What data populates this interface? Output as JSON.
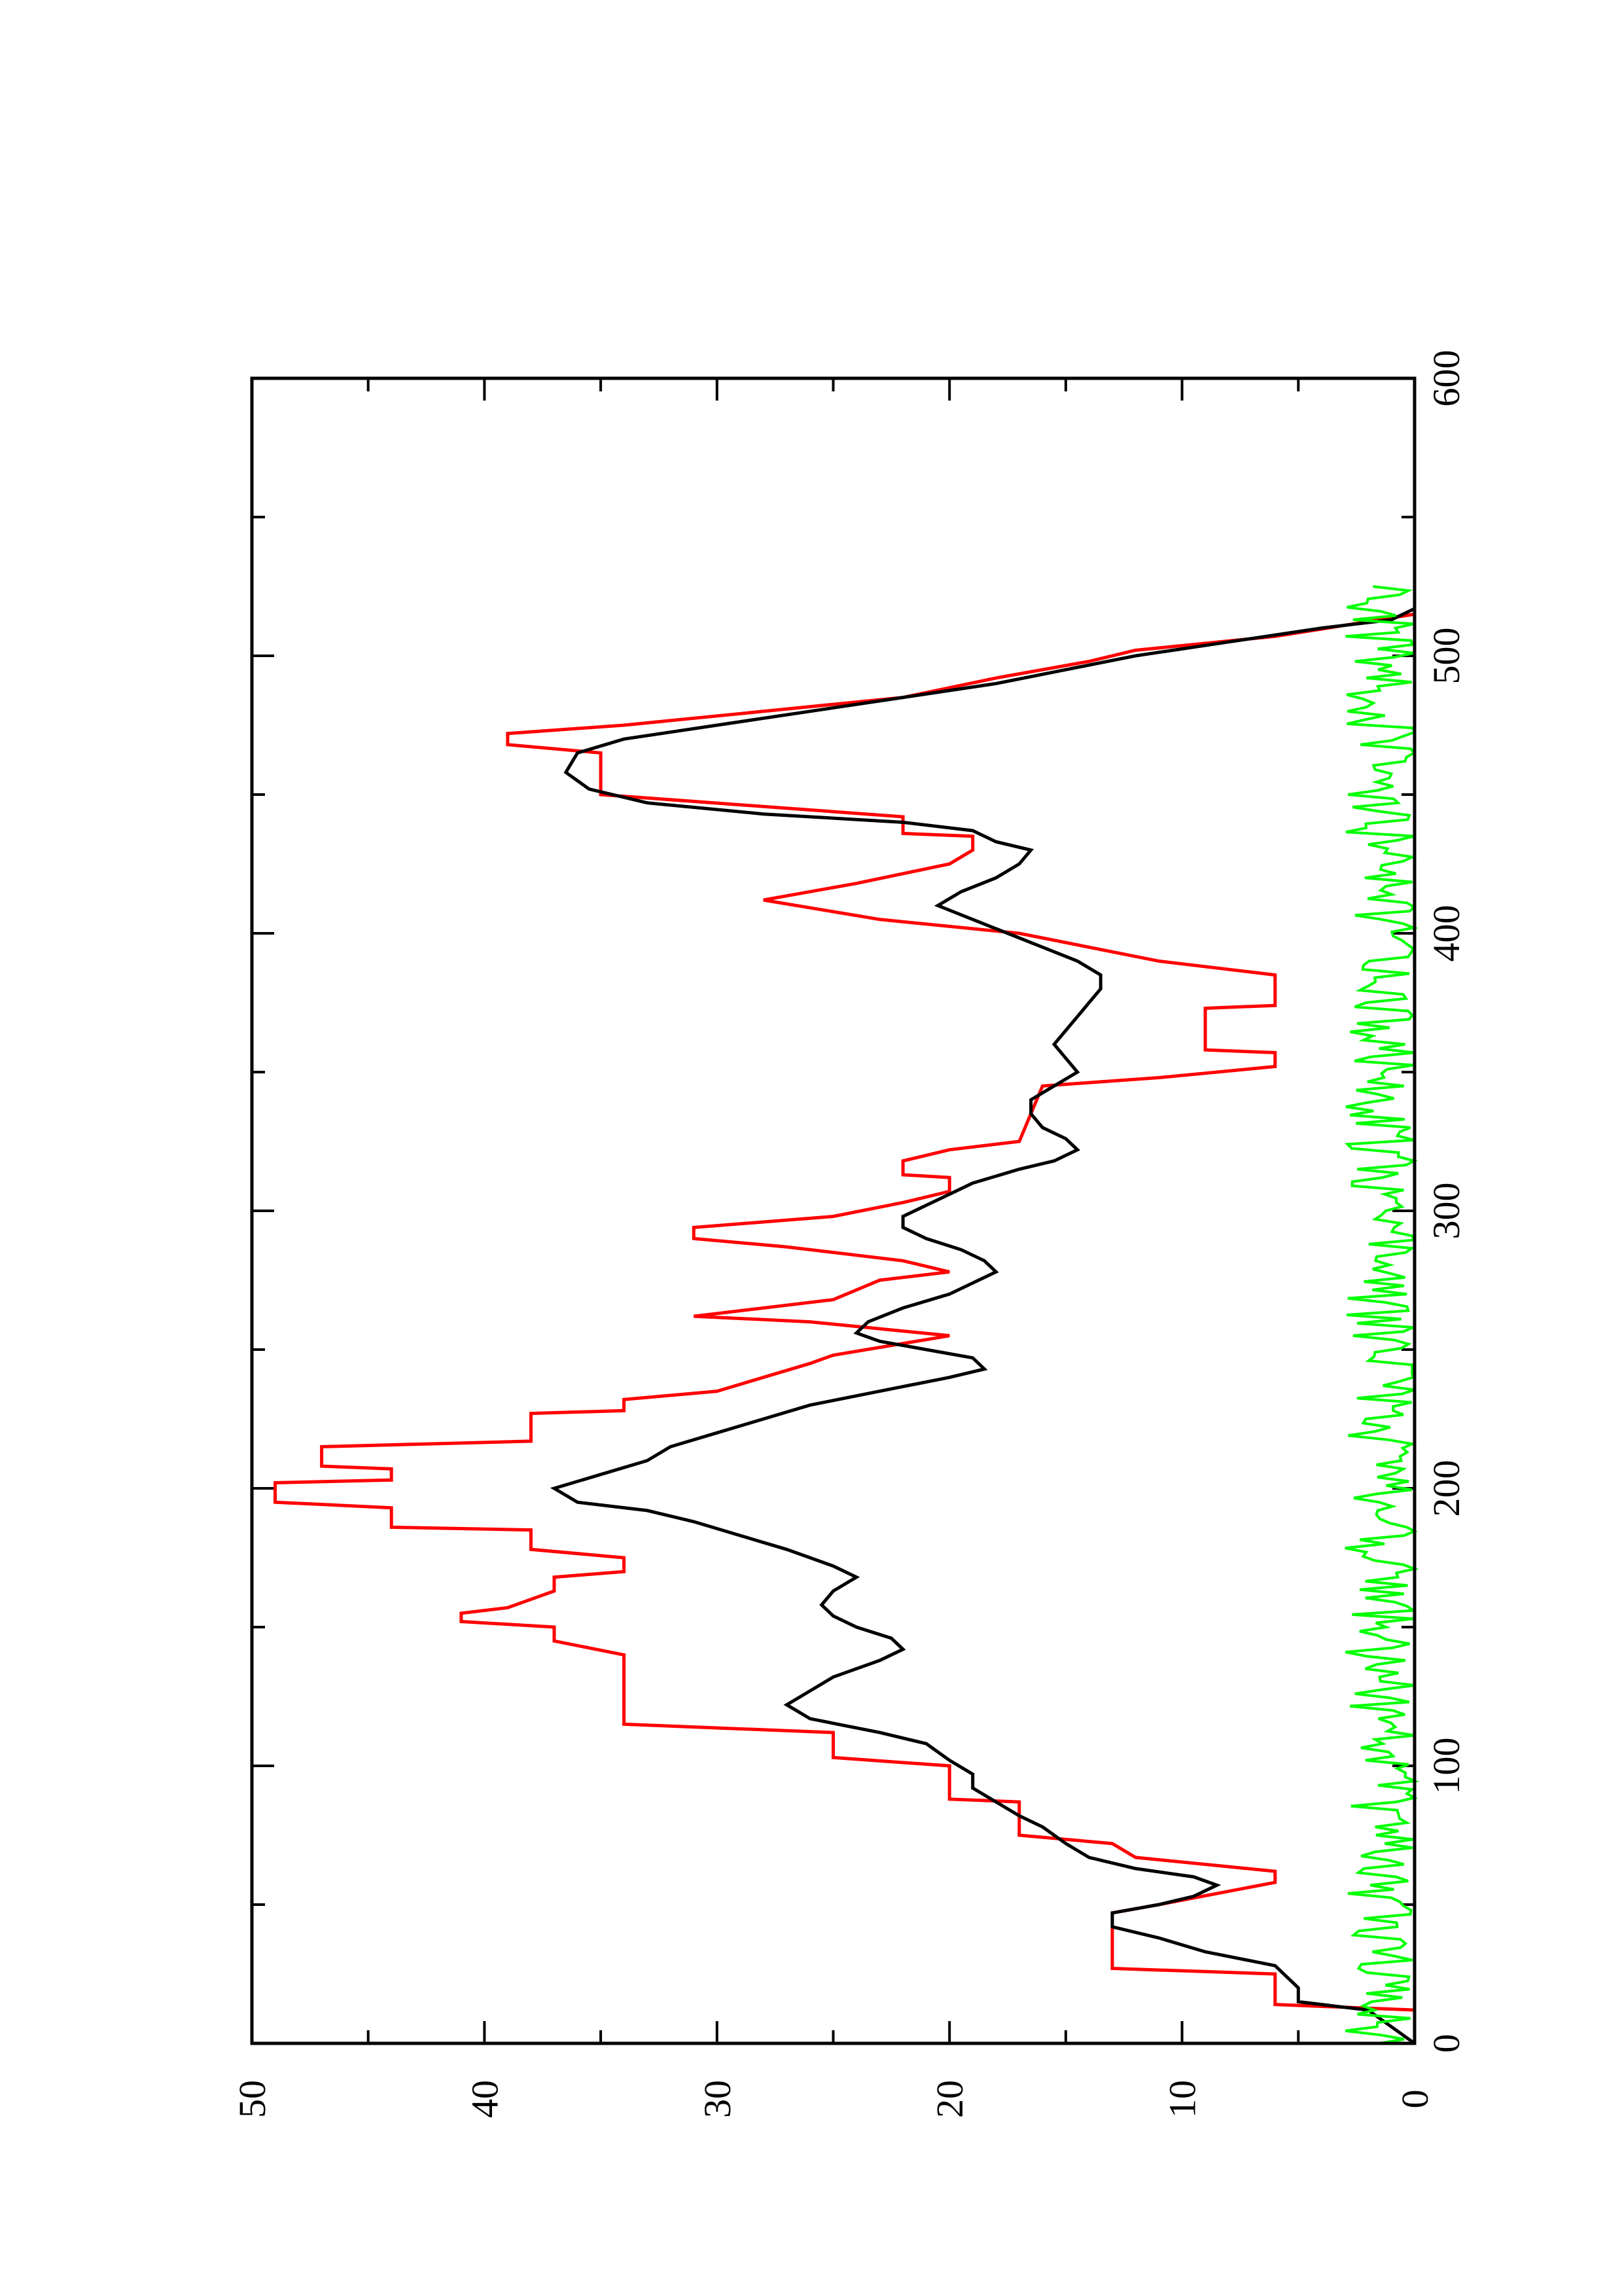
{
  "chart_data": {
    "type": "line",
    "orientation": "rotated-90-ccw",
    "title": "",
    "xlabel": "",
    "ylabel": "",
    "xlim": [
      0,
      600
    ],
    "ylim": [
      0,
      50
    ],
    "x_ticks": [
      0,
      100,
      200,
      300,
      400,
      500,
      600
    ],
    "x_tick_labels": [
      "0",
      "100",
      "200",
      "300",
      "400",
      "500",
      "600"
    ],
    "y_ticks": [
      0,
      10,
      20,
      30,
      40,
      50
    ],
    "y_tick_labels": [
      "0",
      "10",
      "20",
      "30",
      "40",
      "50"
    ],
    "grid": false,
    "legend": "none",
    "series": [
      {
        "color": "#ff0000",
        "style": "step",
        "points": [
          [
            0,
            0
          ],
          [
            12,
            0
          ],
          [
            14,
            6
          ],
          [
            25,
            6
          ],
          [
            27,
            13
          ],
          [
            47,
            13
          ],
          [
            50,
            11
          ],
          [
            58,
            6
          ],
          [
            62,
            6
          ],
          [
            67,
            12
          ],
          [
            72,
            13
          ],
          [
            75,
            17
          ],
          [
            87,
            17
          ],
          [
            88,
            20
          ],
          [
            100,
            20
          ],
          [
            103,
            25
          ],
          [
            112,
            25
          ],
          [
            115,
            34
          ],
          [
            140,
            34
          ],
          [
            145,
            37
          ],
          [
            150,
            37
          ],
          [
            152,
            41
          ],
          [
            155,
            41
          ],
          [
            157,
            39
          ],
          [
            163,
            37
          ],
          [
            168,
            37
          ],
          [
            170,
            34
          ],
          [
            175,
            34
          ],
          [
            178,
            38
          ],
          [
            185,
            38
          ],
          [
            186,
            44
          ],
          [
            193,
            44
          ],
          [
            195,
            49
          ],
          [
            202,
            49
          ],
          [
            203,
            44
          ],
          [
            207,
            44
          ],
          [
            208,
            47
          ],
          [
            215,
            47
          ],
          [
            217,
            38
          ],
          [
            227,
            38
          ],
          [
            228,
            34
          ],
          [
            232,
            34
          ],
          [
            235,
            30
          ],
          [
            245,
            26
          ],
          [
            248,
            25
          ],
          [
            255,
            20
          ],
          [
            260,
            26
          ],
          [
            262,
            31
          ],
          [
            268,
            25
          ],
          [
            275,
            23
          ],
          [
            278,
            20
          ],
          [
            282,
            22
          ],
          [
            287,
            27
          ],
          [
            290,
            31
          ],
          [
            294,
            31
          ],
          [
            298,
            25
          ],
          [
            303,
            22
          ],
          [
            307,
            20
          ],
          [
            312,
            20
          ],
          [
            313,
            22
          ],
          [
            318,
            22
          ],
          [
            322,
            20
          ],
          [
            325,
            17
          ],
          [
            345,
            16
          ],
          [
            348,
            11
          ],
          [
            352,
            6
          ],
          [
            357,
            6
          ],
          [
            358,
            9
          ],
          [
            373,
            9
          ],
          [
            374,
            6
          ],
          [
            385,
            6
          ],
          [
            390,
            11
          ],
          [
            400,
            17
          ],
          [
            405,
            23
          ],
          [
            412,
            28
          ],
          [
            418,
            24
          ],
          [
            425,
            20
          ],
          [
            430,
            19
          ],
          [
            435,
            19
          ],
          [
            436,
            22
          ],
          [
            442,
            22
          ],
          [
            450,
            35
          ],
          [
            465,
            35
          ],
          [
            468,
            39
          ],
          [
            472,
            39
          ],
          [
            475,
            34
          ],
          [
            480,
            28
          ],
          [
            485,
            22
          ],
          [
            492,
            18
          ],
          [
            498,
            14
          ],
          [
            502,
            12
          ],
          [
            507,
            6
          ],
          [
            515,
            0
          ],
          [
            525,
            0
          ]
        ]
      },
      {
        "color": "#000000",
        "style": "line",
        "points": [
          [
            0,
            0
          ],
          [
            12,
            2
          ],
          [
            15,
            5
          ],
          [
            20,
            5
          ],
          [
            28,
            6
          ],
          [
            33,
            9
          ],
          [
            38,
            11
          ],
          [
            42,
            13
          ],
          [
            47,
            13
          ],
          [
            50,
            11
          ],
          [
            53,
            9.5
          ],
          [
            57,
            8.5
          ],
          [
            60,
            9.5
          ],
          [
            63,
            12
          ],
          [
            67,
            14
          ],
          [
            72,
            15
          ],
          [
            78,
            16
          ],
          [
            82,
            17
          ],
          [
            87,
            18
          ],
          [
            92,
            19
          ],
          [
            97,
            19
          ],
          [
            102,
            20
          ],
          [
            108,
            21
          ],
          [
            112,
            23
          ],
          [
            117,
            26
          ],
          [
            122,
            27
          ],
          [
            127,
            26
          ],
          [
            132,
            25
          ],
          [
            138,
            23
          ],
          [
            142,
            22
          ],
          [
            146,
            22.5
          ],
          [
            150,
            24
          ],
          [
            154,
            25
          ],
          [
            158,
            25.5
          ],
          [
            163,
            25
          ],
          [
            168,
            24
          ],
          [
            172,
            25
          ],
          [
            178,
            27
          ],
          [
            183,
            29
          ],
          [
            188,
            31
          ],
          [
            192,
            33
          ],
          [
            195,
            36
          ],
          [
            200,
            37
          ],
          [
            205,
            35
          ],
          [
            210,
            33
          ],
          [
            215,
            32
          ],
          [
            220,
            30
          ],
          [
            225,
            28
          ],
          [
            230,
            26
          ],
          [
            235,
            23
          ],
          [
            240,
            20
          ],
          [
            243,
            18.5
          ],
          [
            247,
            19
          ],
          [
            250,
            21
          ],
          [
            253,
            23
          ],
          [
            256,
            24
          ],
          [
            260,
            23.5
          ],
          [
            265,
            22
          ],
          [
            270,
            20
          ],
          [
            274,
            19
          ],
          [
            278,
            18
          ],
          [
            282,
            18.5
          ],
          [
            286,
            19.5
          ],
          [
            290,
            21
          ],
          [
            294,
            22
          ],
          [
            298,
            22
          ],
          [
            302,
            21
          ],
          [
            306,
            20
          ],
          [
            310,
            19
          ],
          [
            315,
            17
          ],
          [
            318,
            15.5
          ],
          [
            322,
            14.5
          ],
          [
            326,
            15
          ],
          [
            330,
            16
          ],
          [
            335,
            16.5
          ],
          [
            340,
            16.5
          ],
          [
            345,
            15.5
          ],
          [
            350,
            14.5
          ],
          [
            355,
            15
          ],
          [
            360,
            15.5
          ],
          [
            365,
            15
          ],
          [
            370,
            14.5
          ],
          [
            375,
            14
          ],
          [
            380,
            13.5
          ],
          [
            385,
            13.5
          ],
          [
            390,
            14.5
          ],
          [
            395,
            16
          ],
          [
            400,
            17.5
          ],
          [
            405,
            19
          ],
          [
            410,
            20.5
          ],
          [
            415,
            19.5
          ],
          [
            420,
            18
          ],
          [
            425,
            17
          ],
          [
            430,
            16.5
          ],
          [
            433,
            18
          ],
          [
            437,
            19
          ],
          [
            440,
            22
          ],
          [
            443,
            28
          ],
          [
            447,
            33
          ],
          [
            452,
            35.5
          ],
          [
            458,
            36.5
          ],
          [
            465,
            36
          ],
          [
            470,
            34
          ],
          [
            475,
            30
          ],
          [
            480,
            26
          ],
          [
            485,
            22
          ],
          [
            490,
            18
          ],
          [
            495,
            15
          ],
          [
            500,
            12
          ],
          [
            505,
            8
          ],
          [
            510,
            4
          ],
          [
            513,
            1
          ],
          [
            517,
            0
          ],
          [
            525,
            0
          ]
        ]
      },
      {
        "color": "#00ff00",
        "style": "noise",
        "baseline": 0,
        "amplitude": 3,
        "x_range": [
          0,
          525
        ]
      }
    ]
  }
}
